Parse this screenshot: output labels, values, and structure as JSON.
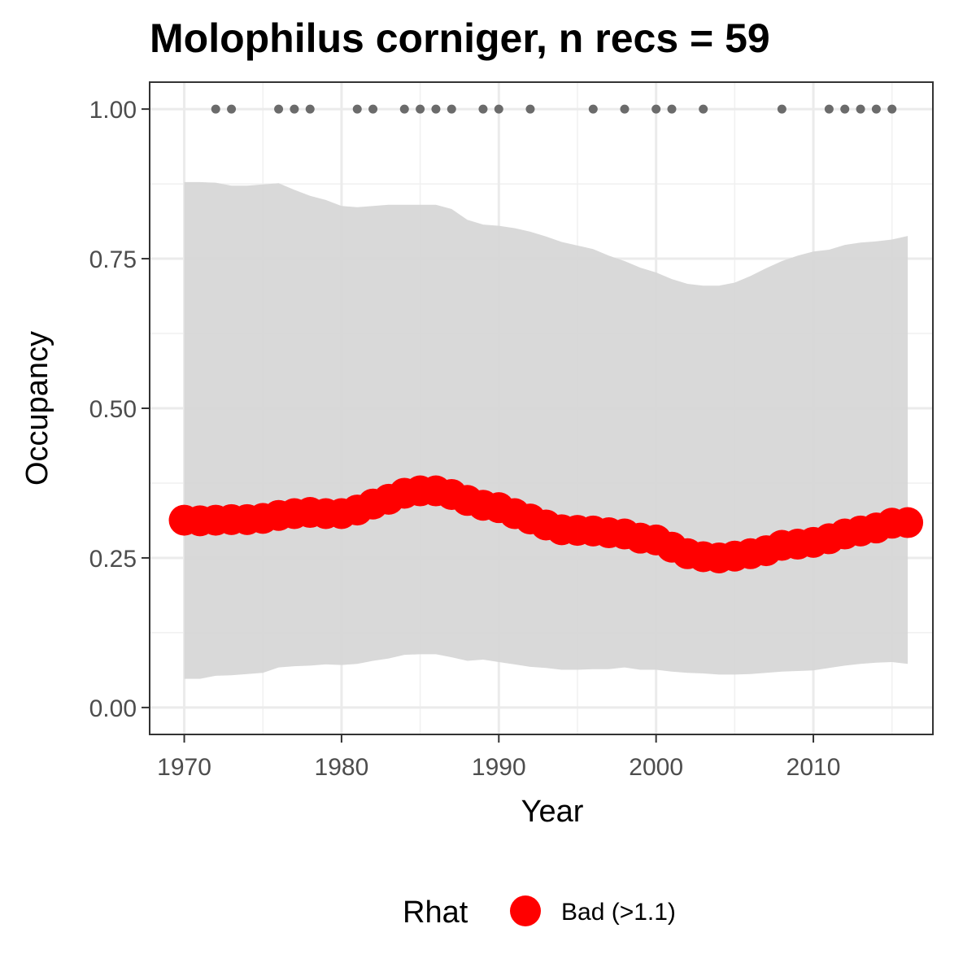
{
  "chart_data": {
    "type": "line",
    "title": "Molophilus corniger, n recs = 59",
    "xlabel": "Year",
    "ylabel": "Occupancy",
    "xlim": [
      1967.8,
      2017.6
    ],
    "ylim": [
      -0.045,
      1.045
    ],
    "x_ticks": [
      1970,
      1980,
      1990,
      2000,
      2010
    ],
    "x_tick_labels": [
      "1970",
      "1980",
      "1990",
      "2000",
      "2010"
    ],
    "y_ticks": [
      0,
      0.25,
      0.5,
      0.75,
      1
    ],
    "y_tick_labels": [
      "0.00",
      "0.25",
      "0.50",
      "0.75",
      "1.00"
    ],
    "grid": true,
    "years": [
      1970,
      1971,
      1972,
      1973,
      1974,
      1975,
      1976,
      1977,
      1978,
      1979,
      1980,
      1981,
      1982,
      1983,
      1984,
      1985,
      1986,
      1987,
      1988,
      1989,
      1990,
      1991,
      1992,
      1993,
      1994,
      1995,
      1996,
      1997,
      1998,
      1999,
      2000,
      2001,
      2002,
      2003,
      2004,
      2005,
      2006,
      2007,
      2008,
      2009,
      2010,
      2011,
      2012,
      2013,
      2014,
      2015,
      2016
    ],
    "occupancy": [
      0.313,
      0.312,
      0.313,
      0.314,
      0.314,
      0.316,
      0.321,
      0.324,
      0.326,
      0.324,
      0.324,
      0.33,
      0.34,
      0.348,
      0.358,
      0.362,
      0.362,
      0.356,
      0.346,
      0.338,
      0.334,
      0.324,
      0.315,
      0.305,
      0.297,
      0.296,
      0.295,
      0.292,
      0.29,
      0.283,
      0.28,
      0.268,
      0.257,
      0.252,
      0.25,
      0.253,
      0.257,
      0.262,
      0.271,
      0.273,
      0.276,
      0.282,
      0.29,
      0.295,
      0.3,
      0.308,
      0.309
    ],
    "upper_ci": [
      0.878,
      0.878,
      0.877,
      0.872,
      0.872,
      0.874,
      0.876,
      0.865,
      0.855,
      0.848,
      0.838,
      0.836,
      0.838,
      0.84,
      0.84,
      0.84,
      0.84,
      0.833,
      0.815,
      0.807,
      0.805,
      0.801,
      0.795,
      0.787,
      0.778,
      0.772,
      0.766,
      0.755,
      0.746,
      0.735,
      0.727,
      0.716,
      0.708,
      0.705,
      0.705,
      0.71,
      0.721,
      0.734,
      0.746,
      0.755,
      0.762,
      0.765,
      0.773,
      0.777,
      0.779,
      0.782,
      0.788
    ],
    "lower_ci": [
      0.048,
      0.048,
      0.053,
      0.054,
      0.056,
      0.058,
      0.067,
      0.069,
      0.07,
      0.072,
      0.071,
      0.073,
      0.078,
      0.082,
      0.088,
      0.089,
      0.089,
      0.084,
      0.078,
      0.08,
      0.076,
      0.072,
      0.068,
      0.066,
      0.063,
      0.063,
      0.064,
      0.064,
      0.067,
      0.063,
      0.063,
      0.06,
      0.058,
      0.057,
      0.055,
      0.055,
      0.056,
      0.058,
      0.06,
      0.061,
      0.062,
      0.066,
      0.07,
      0.073,
      0.075,
      0.076,
      0.073
    ],
    "record_years": [
      1972,
      1973,
      1976,
      1977,
      1978,
      1981,
      1982,
      1984,
      1985,
      1986,
      1987,
      1989,
      1990,
      1992,
      1996,
      1998,
      2000,
      2001,
      2003,
      2008,
      2011,
      2012,
      2013,
      2014,
      2015
    ],
    "record_value": 1.0,
    "legend": {
      "title": "Rhat",
      "label": "Bad (>1.1)",
      "position": "bottom"
    },
    "colors": {
      "line": "#ff0000",
      "ribbon": "#d6d6d6",
      "records": "#6b6b6b"
    }
  }
}
